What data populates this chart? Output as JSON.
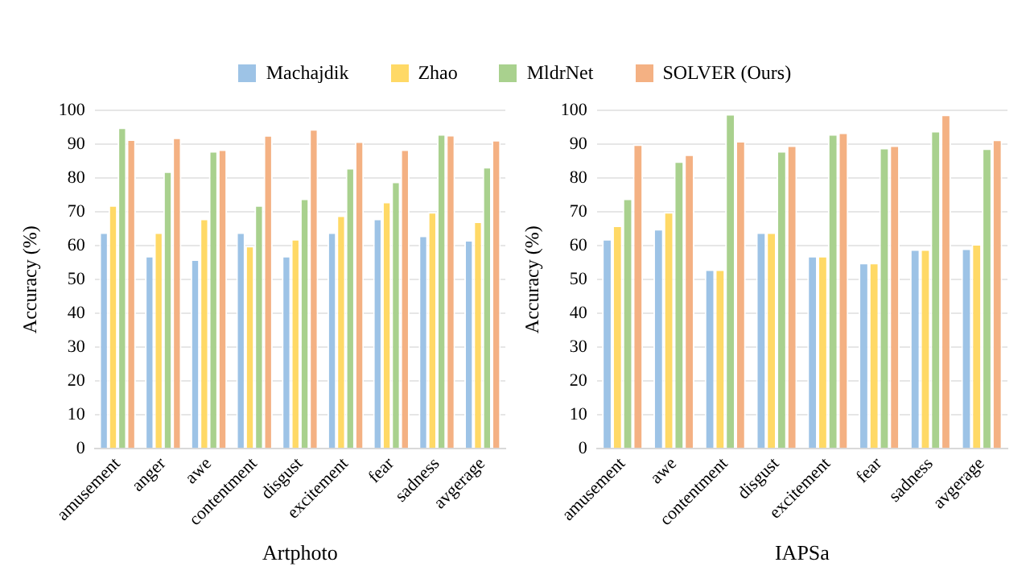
{
  "chart_data": [
    {
      "type": "bar",
      "xlabel": "Artphoto",
      "ylabel": "Accuracy (%)",
      "categories": [
        "amusement",
        "anger",
        "awe",
        "contentment",
        "disgust",
        "excitement",
        "fear",
        "sadness",
        "avgerage"
      ],
      "ylim": [
        0,
        100
      ],
      "yticks": [
        0,
        10,
        20,
        30,
        40,
        50,
        60,
        70,
        80,
        90,
        100
      ],
      "grid": "y",
      "legend": "top",
      "series": [
        {
          "name": "Machajdik",
          "color": "#9dc3e6",
          "values": [
            64,
            57,
            56,
            64,
            57,
            64,
            68,
            63,
            61.7
          ]
        },
        {
          "name": "Zhao",
          "color": "#ffd966",
          "values": [
            72,
            64,
            68,
            60,
            62,
            69,
            73,
            70,
            67.2
          ]
        },
        {
          "name": "MldrNet",
          "color": "#a9d18e",
          "values": [
            95,
            82,
            88,
            72,
            74,
            83,
            79,
            93,
            83.3
          ]
        },
        {
          "name": "SOLVER (Ours)",
          "color": "#f4b183",
          "values": [
            91.5,
            92,
            88.5,
            92.7,
            94.5,
            90.9,
            88.5,
            92.8,
            91.3
          ]
        }
      ]
    },
    {
      "type": "bar",
      "xlabel": "IAPSa",
      "ylabel": "Accuracy (%)",
      "categories": [
        "amusement",
        "awe",
        "contentment",
        "disgust",
        "excitement",
        "fear",
        "sadness",
        "avgerage"
      ],
      "ylim": [
        0,
        100
      ],
      "yticks": [
        0,
        10,
        20,
        30,
        40,
        50,
        60,
        70,
        80,
        90,
        100
      ],
      "grid": "y",
      "series": [
        {
          "color": "#9dc3e6",
          "values": [
            62,
            65,
            53,
            64,
            57,
            55,
            59,
            59.2
          ]
        },
        {
          "color": "#ffd966",
          "values": [
            66,
            70,
            53,
            64,
            57,
            55,
            59,
            60.5
          ]
        },
        {
          "color": "#a9d18e",
          "values": [
            74,
            85,
            99,
            88,
            93,
            89,
            94,
            88.8
          ]
        },
        {
          "color": "#f4b183",
          "values": [
            90,
            87,
            91,
            89.7,
            93.5,
            89.7,
            98.8,
            91.4
          ]
        }
      ]
    }
  ]
}
